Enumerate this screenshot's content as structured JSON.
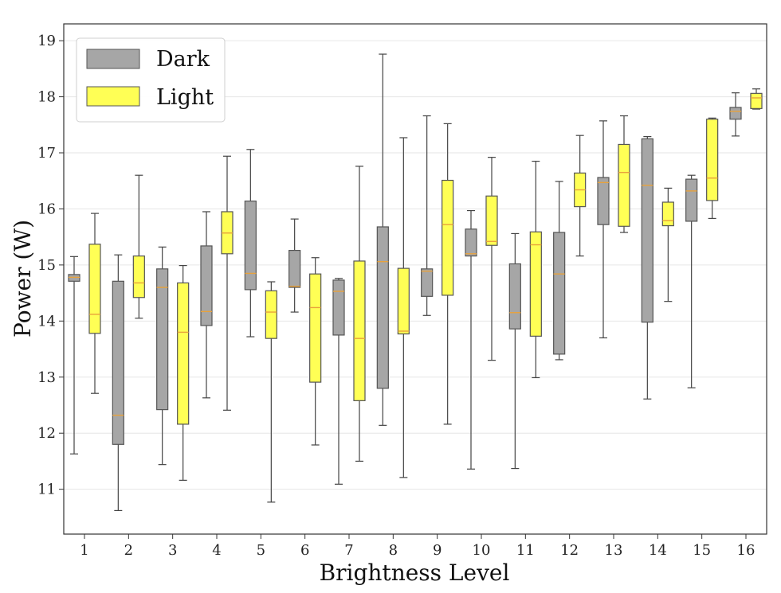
{
  "chart_data": {
    "type": "boxplot",
    "xlabel": "Brightness Level",
    "ylabel": "Power (W)",
    "ylim": [
      10.2,
      19.3
    ],
    "yticks": [
      11,
      12,
      13,
      14,
      15,
      16,
      17,
      18,
      19
    ],
    "categories": [
      "1",
      "2",
      "3",
      "4",
      "5",
      "6",
      "7",
      "8",
      "9",
      "10",
      "11",
      "12",
      "13",
      "14",
      "15",
      "16"
    ],
    "grid": "horizontal",
    "legend_position": "top-left",
    "colors": {
      "Dark": "#a6a6a6",
      "Light": "#ffff55",
      "median": "#e8a23c",
      "edge": "#555555",
      "grid": "#e6e6e6"
    },
    "series": [
      {
        "name": "Dark",
        "boxes": [
          {
            "min": 11.63,
            "q1": 14.71,
            "median": 14.78,
            "q3": 14.83,
            "max": 15.15
          },
          {
            "min": 10.62,
            "q1": 11.8,
            "median": 12.32,
            "q3": 14.71,
            "max": 15.18
          },
          {
            "min": 11.44,
            "q1": 12.42,
            "median": 14.6,
            "q3": 14.93,
            "max": 15.32
          },
          {
            "min": 12.63,
            "q1": 13.92,
            "median": 14.17,
            "q3": 15.34,
            "max": 15.95
          },
          {
            "min": 13.72,
            "q1": 14.56,
            "median": 14.85,
            "q3": 16.14,
            "max": 17.06
          },
          {
            "min": 14.16,
            "q1": 14.6,
            "median": 14.62,
            "q3": 15.26,
            "max": 15.82
          },
          {
            "min": 11.09,
            "q1": 13.75,
            "median": 14.53,
            "q3": 14.73,
            "max": 14.76
          },
          {
            "min": 12.14,
            "q1": 12.8,
            "median": 15.06,
            "q3": 15.68,
            "max": 18.76
          },
          {
            "min": 14.1,
            "q1": 14.44,
            "median": 14.89,
            "q3": 14.93,
            "max": 17.66
          },
          {
            "min": 11.36,
            "q1": 15.16,
            "median": 15.2,
            "q3": 15.64,
            "max": 15.97
          },
          {
            "min": 11.37,
            "q1": 13.86,
            "median": 14.15,
            "q3": 15.02,
            "max": 15.56
          },
          {
            "min": 13.31,
            "q1": 13.41,
            "median": 14.84,
            "q3": 15.58,
            "max": 16.49
          },
          {
            "min": 13.7,
            "q1": 15.72,
            "median": 16.47,
            "q3": 16.56,
            "max": 17.57
          },
          {
            "min": 12.61,
            "q1": 13.98,
            "median": 16.42,
            "q3": 17.25,
            "max": 17.29
          },
          {
            "min": 12.81,
            "q1": 15.78,
            "median": 16.32,
            "q3": 16.53,
            "max": 16.6
          },
          {
            "min": 17.3,
            "q1": 17.6,
            "median": 17.74,
            "q3": 17.81,
            "max": 18.07
          }
        ]
      },
      {
        "name": "Light",
        "boxes": [
          {
            "min": 12.71,
            "q1": 13.78,
            "median": 14.12,
            "q3": 15.37,
            "max": 15.92
          },
          {
            "min": 14.05,
            "q1": 14.42,
            "median": 14.68,
            "q3": 15.16,
            "max": 16.6
          },
          {
            "min": 11.16,
            "q1": 12.16,
            "median": 13.8,
            "q3": 14.68,
            "max": 14.99
          },
          {
            "min": 12.41,
            "q1": 15.2,
            "median": 15.57,
            "q3": 15.95,
            "max": 16.94
          },
          {
            "min": 10.77,
            "q1": 13.69,
            "median": 14.16,
            "q3": 14.54,
            "max": 14.7
          },
          {
            "min": 11.79,
            "q1": 12.91,
            "median": 14.24,
            "q3": 14.84,
            "max": 15.13
          },
          {
            "min": 11.5,
            "q1": 12.58,
            "median": 13.69,
            "q3": 15.07,
            "max": 16.76
          },
          {
            "min": 11.21,
            "q1": 13.77,
            "median": 13.82,
            "q3": 14.94,
            "max": 17.27
          },
          {
            "min": 12.16,
            "q1": 14.46,
            "median": 15.72,
            "q3": 16.51,
            "max": 17.52
          },
          {
            "min": 13.3,
            "q1": 15.35,
            "median": 15.42,
            "q3": 16.23,
            "max": 16.92
          },
          {
            "min": 12.99,
            "q1": 13.73,
            "median": 15.36,
            "q3": 15.59,
            "max": 16.85
          },
          {
            "min": 15.16,
            "q1": 16.04,
            "median": 16.34,
            "q3": 16.64,
            "max": 17.31
          },
          {
            "min": 15.58,
            "q1": 15.69,
            "median": 16.65,
            "q3": 17.15,
            "max": 17.66
          },
          {
            "min": 14.35,
            "q1": 15.7,
            "median": 15.79,
            "q3": 16.12,
            "max": 16.37
          },
          {
            "min": 15.83,
            "q1": 16.15,
            "median": 16.55,
            "q3": 17.6,
            "max": 17.62
          },
          {
            "min": 17.78,
            "q1": 17.79,
            "median": 17.98,
            "q3": 18.06,
            "max": 18.14
          }
        ]
      }
    ]
  }
}
